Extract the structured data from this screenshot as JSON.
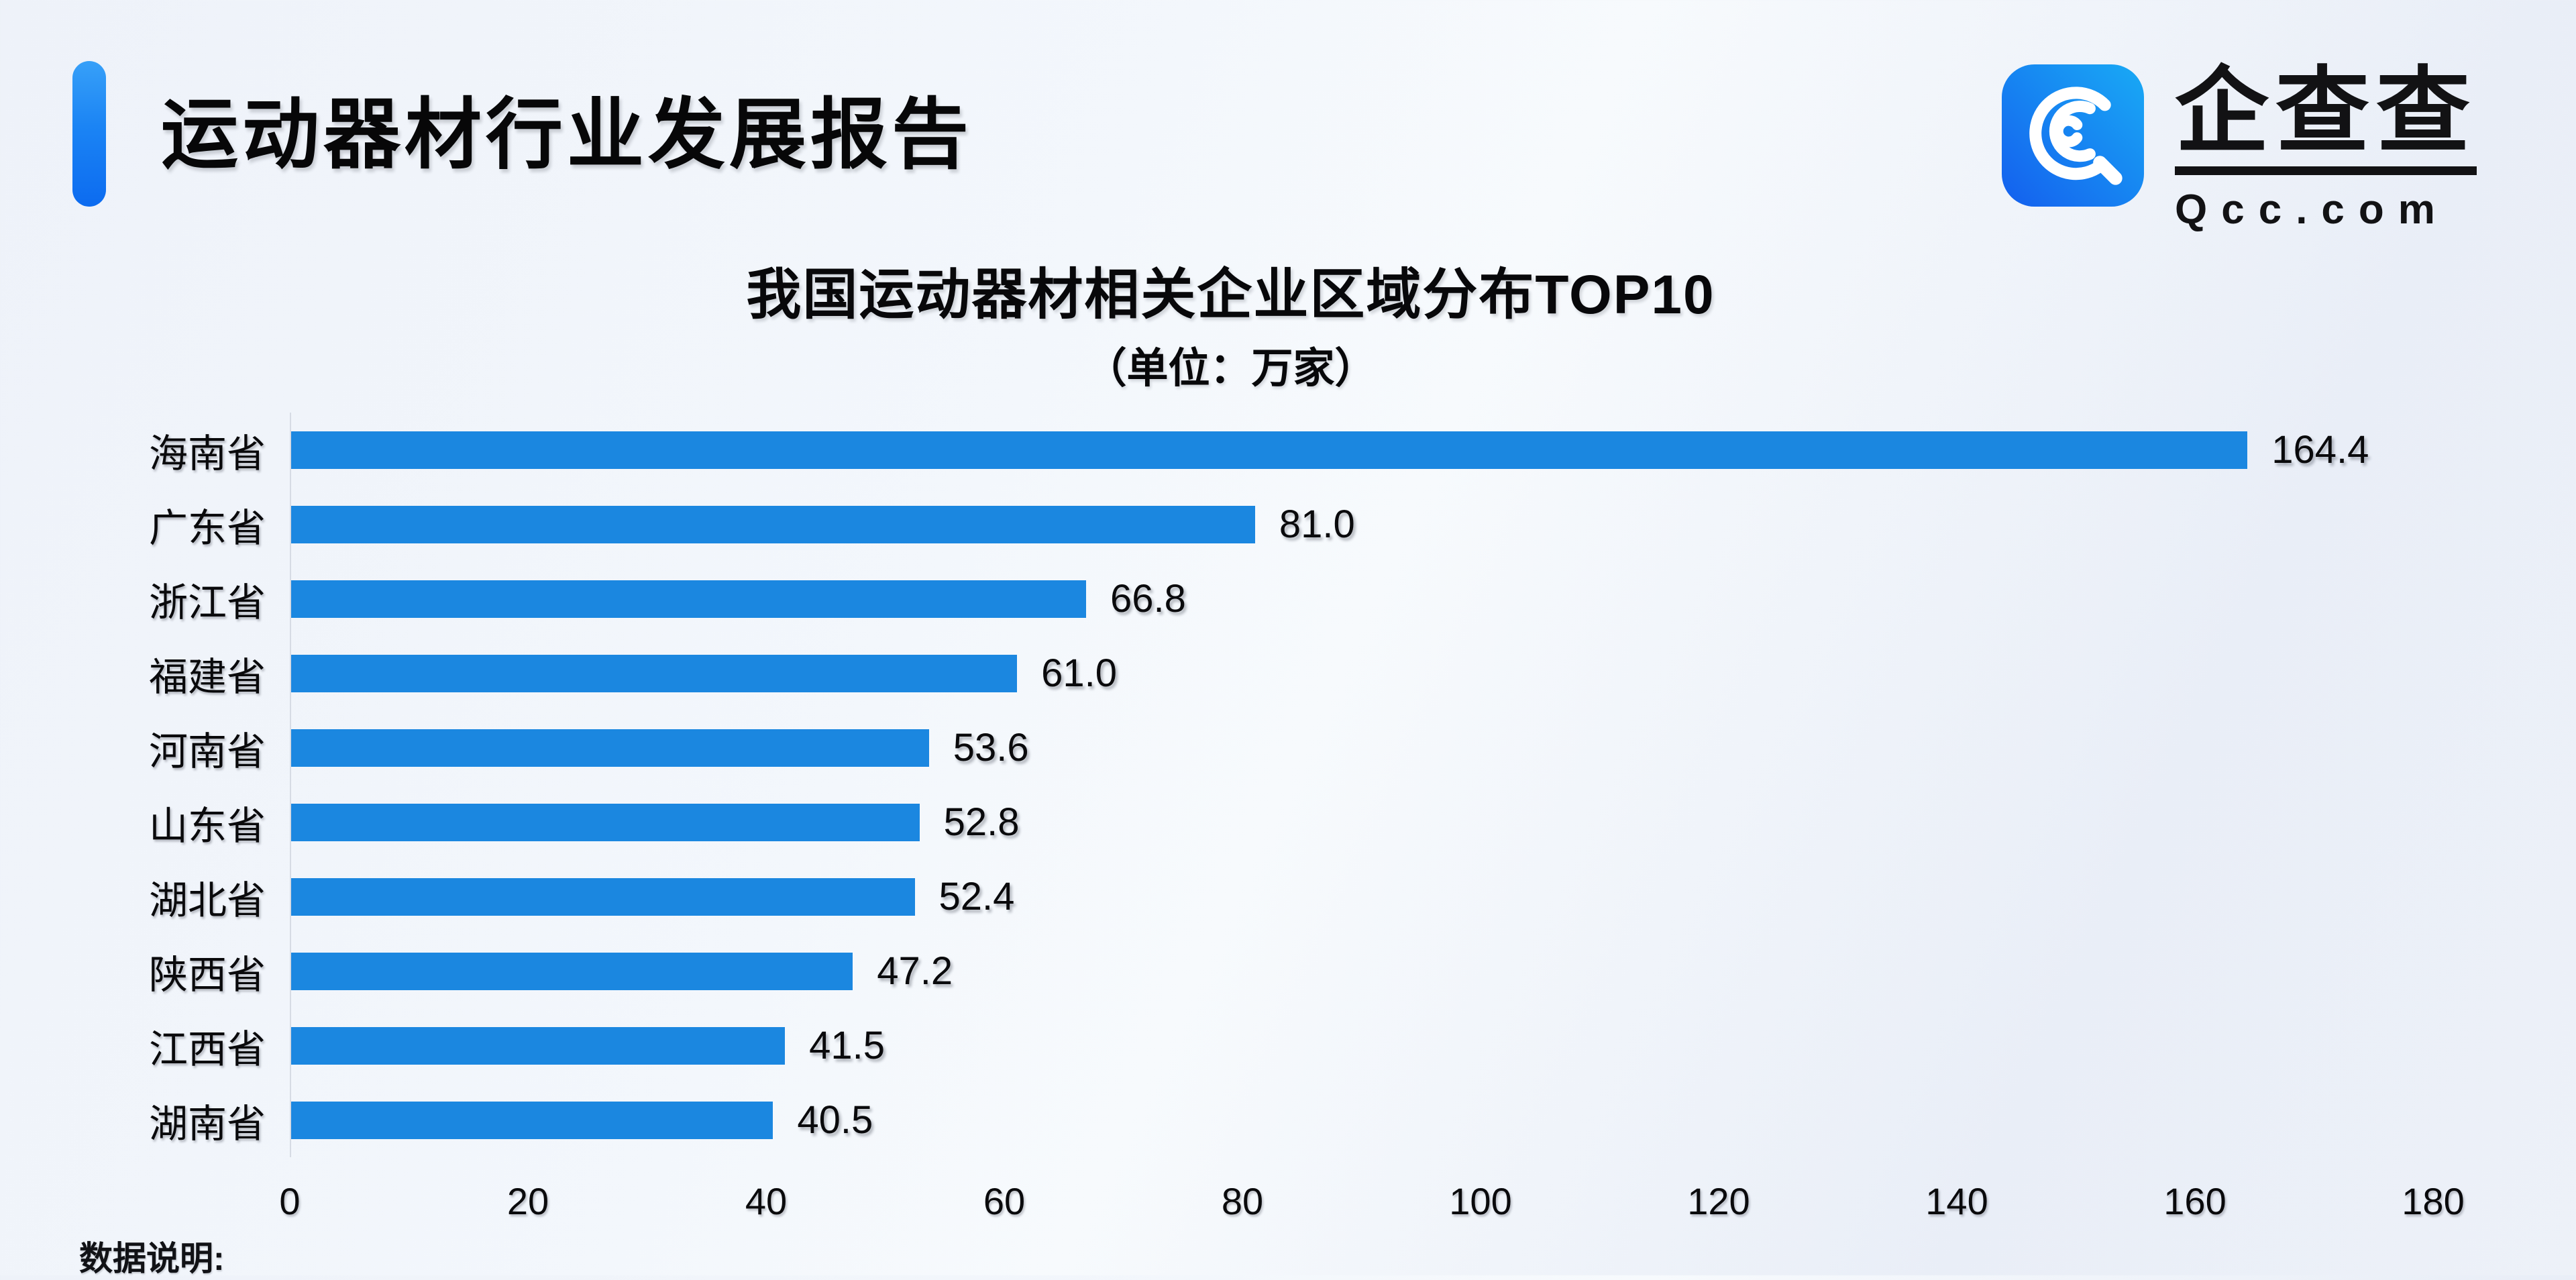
{
  "header": {
    "title": "运动器材行业发展报告"
  },
  "logo": {
    "icon": "qcc-logo-icon",
    "name_cn": "企查查",
    "domain": "Qcc.com",
    "icon_gradient": [
      "#145fee",
      "#19aaf5"
    ]
  },
  "chart_data": {
    "type": "bar",
    "orientation": "horizontal",
    "title": "我国运动器材相关企业区域分布TOP10",
    "subtitle": "（单位：万家）",
    "categories": [
      "海南省",
      "广东省",
      "浙江省",
      "福建省",
      "河南省",
      "山东省",
      "湖北省",
      "陕西省",
      "江西省",
      "湖南省"
    ],
    "values": [
      164.4,
      81.0,
      66.8,
      61.0,
      53.6,
      52.8,
      52.4,
      47.2,
      41.5,
      40.5
    ],
    "value_decimals": 1,
    "xlim": [
      0,
      180
    ],
    "x_ticks": [
      0,
      20,
      40,
      60,
      80,
      100,
      120,
      140,
      160,
      180
    ],
    "bar_color": "#1B87E0",
    "grid": "off",
    "legend": "none"
  },
  "footer": {
    "note": "数据说明:"
  },
  "colors": {
    "accent": "#0c6bf0",
    "bar": "#1B87E0",
    "background": "#eef2f9",
    "text": "#0a0a0c",
    "axis_line": "#d6dbe4"
  }
}
